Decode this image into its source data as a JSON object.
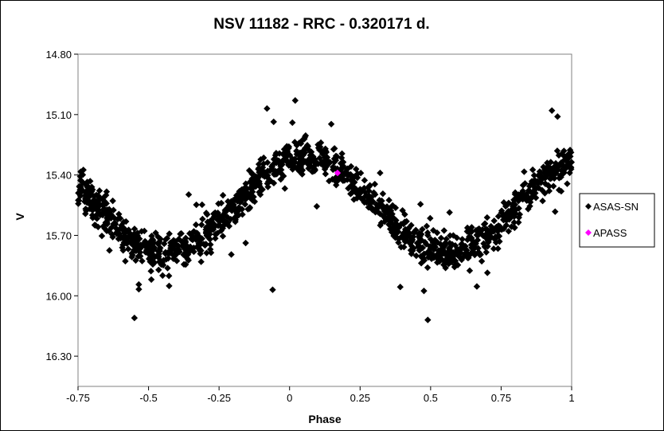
{
  "chart_data": {
    "type": "scatter",
    "title": "NSV 11182 - RRC - 0.320171 d.",
    "xlabel": "Phase",
    "ylabel": "V",
    "xlim": [
      -0.75,
      1.0
    ],
    "ylim": [
      14.8,
      16.45
    ],
    "y_inverted": true,
    "x_ticks": [
      "-0.75",
      "-0.5",
      "-0.25",
      "0",
      "0.25",
      "0.5",
      "0.75",
      "1"
    ],
    "y_ticks": [
      "14.80",
      "15.10",
      "15.40",
      "15.70",
      "16.00",
      "16.30"
    ],
    "grid": false,
    "legend_position": "right",
    "model": {
      "period_d": 0.320171,
      "mean_mag": 15.55,
      "amplitude": 0.24,
      "n_points": 1400
    },
    "series": [
      {
        "name": "ASAS-SN",
        "marker": "diamond",
        "color": "#000000",
        "generated": true,
        "x": [
          0.93,
          0.95,
          -0.08,
          0.02,
          -0.55,
          0.49,
          -0.06,
          0.01
        ],
        "y": [
          15.08,
          15.11,
          15.07,
          15.03,
          16.11,
          16.12,
          15.97,
          15.14
        ]
      },
      {
        "name": "APASS",
        "marker": "diamond",
        "color": "#ff00ff",
        "x": [
          0.17
        ],
        "y": [
          15.39
        ]
      }
    ]
  }
}
